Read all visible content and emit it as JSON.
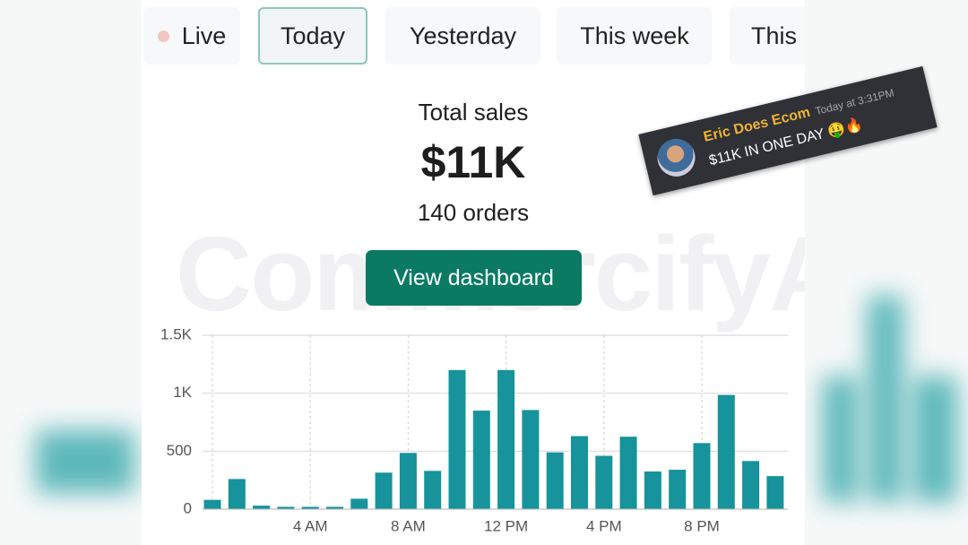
{
  "tabs": [
    "Live",
    "Today",
    "Yesterday",
    "This week",
    "This"
  ],
  "summary": {
    "label": "Total sales",
    "amount": "$11K",
    "orders": "140 orders"
  },
  "button": "View dashboard",
  "watermark": "CommercifyAI",
  "overlay": {
    "name": "Eric Does Ecom",
    "time": "Today at 3:31PM",
    "message": "$11K IN ONE DAY 🤑🔥"
  },
  "chart_data": {
    "type": "bar",
    "color": "#16939b",
    "grid": true,
    "categories": [
      null,
      null,
      null,
      null,
      "4 AM",
      null,
      null,
      null,
      "8 AM",
      null,
      null,
      null,
      "12 PM",
      null,
      null,
      null,
      "4 PM",
      null,
      null,
      null,
      "8 PM",
      null,
      null,
      null
    ],
    "values": [
      80,
      260,
      30,
      20,
      20,
      20,
      90,
      315,
      485,
      330,
      1200,
      850,
      1200,
      855,
      490,
      630,
      460,
      625,
      325,
      340,
      570,
      985,
      415,
      285
    ],
    "ylim": [
      0,
      1500
    ],
    "yticks": [
      0,
      500,
      {
        "value": 1000,
        "label": "1K"
      },
      {
        "value": 1500,
        "label": "1.5K"
      }
    ]
  }
}
